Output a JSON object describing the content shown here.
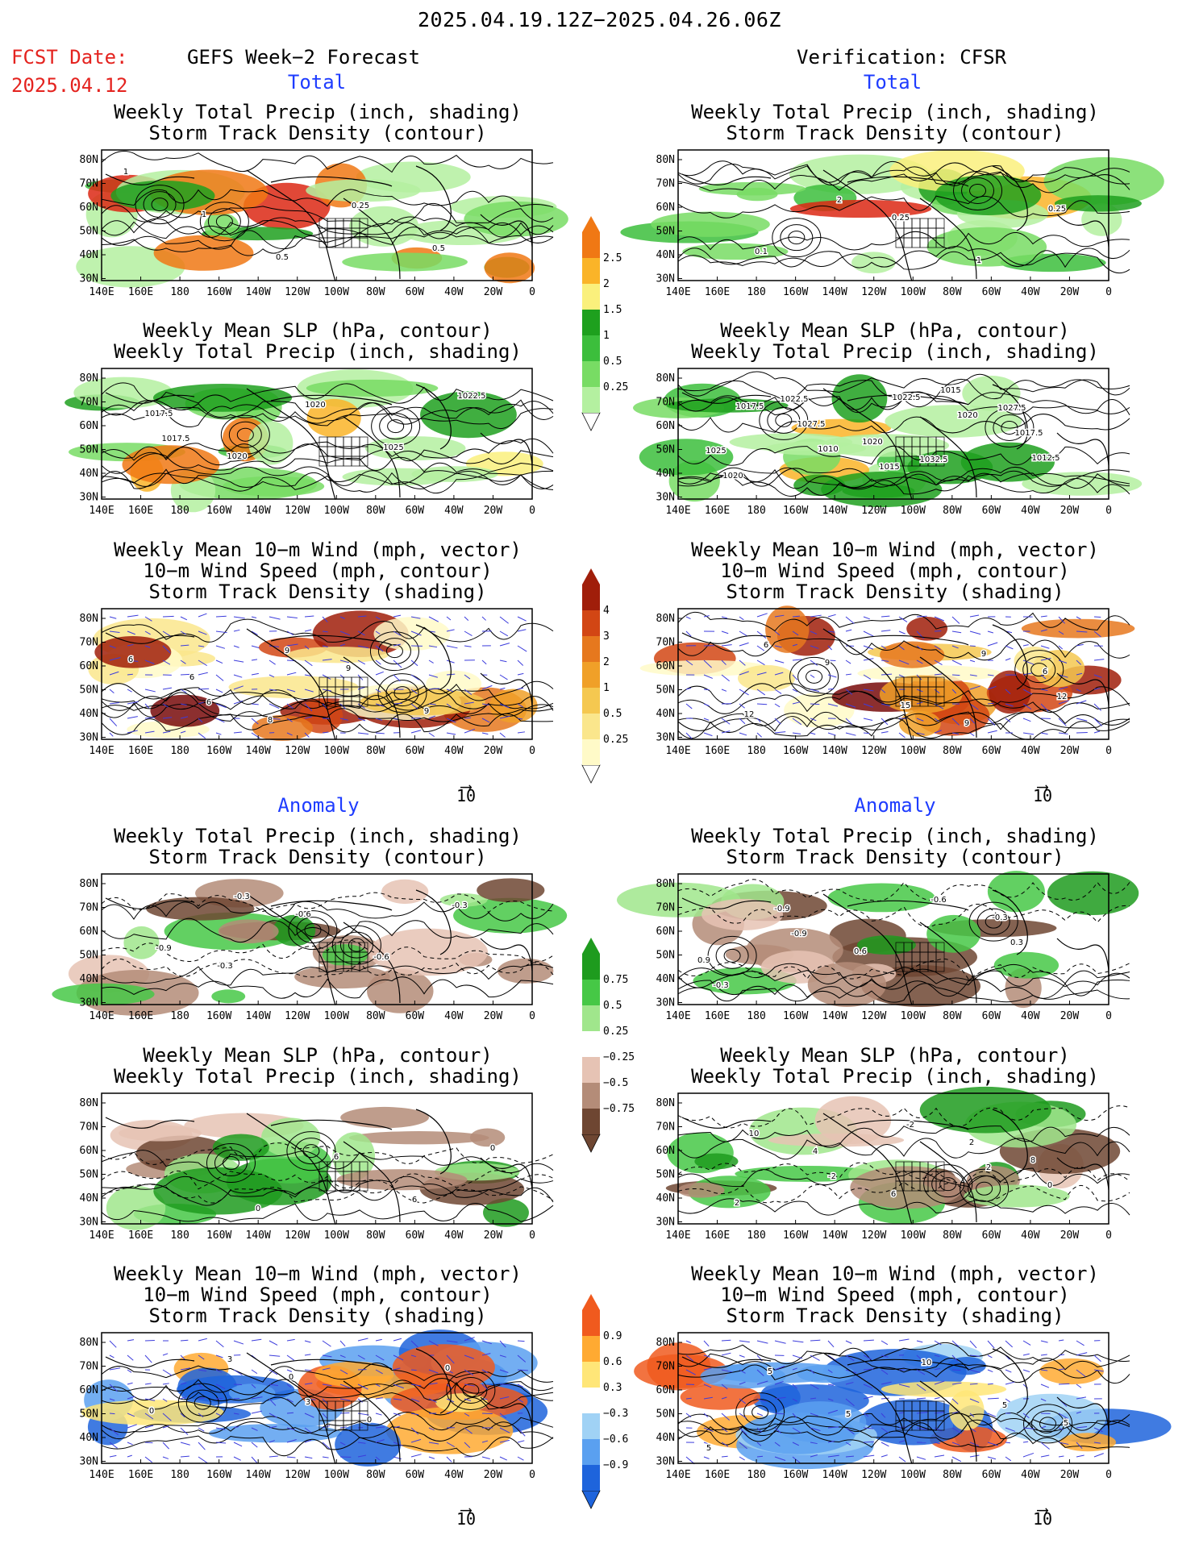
{
  "header": {
    "period": "2025.04.19.12Z−2025.04.26.06Z",
    "fcst_label": "FCST Date:",
    "fcst_date": "2025.04.12",
    "left_title": "GEFS Week−2 Forecast",
    "right_title": "Verification: CFSR",
    "total_label": "Total",
    "anomaly_label": "Anomaly"
  },
  "panel_titles": {
    "precip_storm": [
      "Weekly Total Precip (inch, shading)",
      "Storm Track Density (contour)"
    ],
    "slp_precip": [
      "Weekly Mean SLP (hPa, contour)",
      "Weekly Total Precip (inch, shading)"
    ],
    "wind_storm": [
      "Weekly Mean 10−m Wind (mph, vector)",
      "10−m Wind Speed (mph, contour)",
      "Storm Track Density (shading)"
    ]
  },
  "axes": {
    "lat_ticks": [
      "80N",
      "70N",
      "60N",
      "50N",
      "40N",
      "30N"
    ],
    "lon_ticks": [
      "140E",
      "160E",
      "180",
      "160W",
      "140W",
      "120W",
      "100W",
      "80W",
      "60W",
      "40W",
      "20W",
      "0"
    ]
  },
  "vector_ref": "10",
  "colors": {
    "precip": [
      "#b4f0a0",
      "#78dc64",
      "#3cbe3c",
      "#1ea01e",
      "#faf07c",
      "#fab428",
      "#f07814",
      "#dc2814"
    ],
    "storm_total": [
      "#fffac8",
      "#fae68c",
      "#f5c850",
      "#f0a028",
      "#e6781e",
      "#d24614",
      "#a01e0a",
      "#780a0a"
    ],
    "precip_anom_pos": [
      "#1e9b1e",
      "#46c846",
      "#a0e68c"
    ],
    "precip_anom_neg": [
      "#e6c3b4",
      "#b48c78",
      "#6e4632"
    ],
    "storm_anom": [
      "#1e64dc",
      "#5aa0f0",
      "#a0d2f5",
      "#ffffff",
      "#ffe678",
      "#ffaa32",
      "#f05a1e"
    ],
    "contour": "#000000",
    "vector": "#3c3cdc"
  },
  "colorbars": {
    "precip": [
      "0.25",
      "0.5",
      "1",
      "1.5",
      "2",
      "2.5"
    ],
    "storm_total": [
      "0.25",
      "0.5",
      "1",
      "2",
      "3",
      "4"
    ],
    "precip_anom": [
      "−0.75",
      "−0.5",
      "−0.25",
      "0.25",
      "0.5",
      "0.75"
    ],
    "storm_anom": [
      "−0.9",
      "−0.6",
      "−0.3",
      "0.3",
      "0.6",
      "0.9"
    ]
  },
  "panels": [
    {
      "id": "fcst-total-precip-storm",
      "labels": [
        "1",
        "1",
        "0.5",
        "0.25",
        "0.5"
      ]
    },
    {
      "id": "fcst-total-slp-precip",
      "labels": [
        "1017.5",
        "1020",
        "1020",
        "1025",
        "1022.5",
        "1017.5"
      ]
    },
    {
      "id": "fcst-total-wind-storm",
      "labels": [
        "6",
        "8",
        "9",
        "9",
        "6",
        "6",
        "9"
      ]
    },
    {
      "id": "fcst-anom-precip-storm",
      "labels": [
        "-0.3",
        "-0.6",
        "-0.6",
        "-0.3",
        "-0.9",
        "-0.3"
      ]
    },
    {
      "id": "fcst-anom-slp-precip",
      "labels": [
        "0",
        "6",
        "6",
        "0"
      ]
    },
    {
      "id": "fcst-anom-wind-storm",
      "labels": [
        "0",
        "0",
        "0",
        "0",
        "3",
        "3"
      ]
    },
    {
      "id": "ver-total-precip-storm",
      "labels": [
        "0.25",
        "1",
        "0.25",
        "0.1",
        "2"
      ]
    },
    {
      "id": "ver-total-slp-precip",
      "labels": [
        "1032.5",
        "1027.5",
        "1025",
        "1022.5",
        "1020",
        "1015",
        "1017.5",
        "1020",
        "1027.5",
        "1015",
        "1020",
        "1012.5",
        "1017.5",
        "1010",
        "1022.5"
      ]
    },
    {
      "id": "ver-total-wind-storm",
      "labels": [
        "9",
        "6",
        "12",
        "9",
        "15",
        "9",
        "12",
        "6"
      ]
    },
    {
      "id": "ver-anom-precip-storm",
      "labels": [
        "-0.3",
        "0.9",
        "-0.9",
        "0.6",
        "-0.6",
        "0.3",
        "-0.3",
        "-0.9"
      ]
    },
    {
      "id": "ver-anom-slp-precip",
      "labels": [
        "8",
        "2",
        "4",
        "6",
        "2",
        "0",
        "10",
        "-2",
        "-2",
        "2"
      ]
    },
    {
      "id": "ver-anom-wind-storm",
      "labels": [
        "5",
        "5",
        "5",
        "10",
        "5",
        "5"
      ]
    }
  ]
}
